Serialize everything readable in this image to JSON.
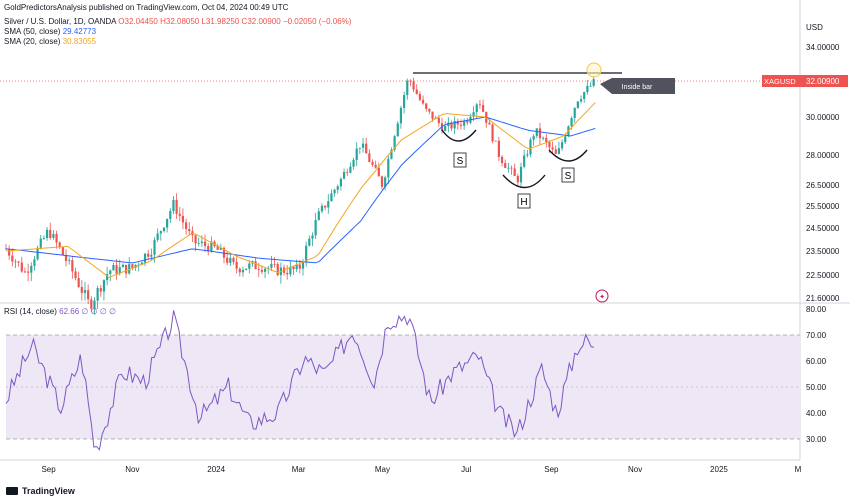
{
  "publisher": "GoldPredictorsAnalysis published on TradingView.com, Oct 04, 2024 00:49 UTC",
  "symbol_line": {
    "name": "Silver / U.S. Dollar, 1D, OANDA",
    "open": "O32.04450",
    "high": "H32.08050",
    "low": "L31.98250",
    "close": "C32.00900",
    "change": "−0.02050 (−0.06%)"
  },
  "sma50": {
    "label": "SMA (50, close)",
    "value": "29.42773",
    "color": "#2962ff"
  },
  "sma20": {
    "label": "SMA (20, close)",
    "value": "30.83055",
    "color": "#f5a623"
  },
  "rsi_label": {
    "label": "RSI (14, close)",
    "value": "62.66",
    "zeros": "∅ ∅ ∅ ∅"
  },
  "currency": "USD",
  "price_tag": {
    "symbol": "XAGUSD",
    "value": "32.00900"
  },
  "annotations": {
    "inside_bar": "Inside bar",
    "left_shoulder": "S",
    "head": "H",
    "right_shoulder": "S"
  },
  "footer": "TradingView",
  "colors": {
    "up": "#26a69a",
    "down": "#ef5350",
    "rsi": "#7e57c2",
    "rsi_band": "#ede7f6",
    "neckline": "#131722"
  },
  "chart_data": [
    {
      "type": "candlestick",
      "title": "Silver / U.S. Dollar, 1D, OANDA",
      "x_axis_ticks": [
        "Sep",
        "Nov",
        "2024",
        "Mar",
        "May",
        "Jul",
        "Sep",
        "Nov",
        "2025",
        "M"
      ],
      "y_axis_ticks": [
        34.0,
        32.0,
        30.0,
        28.0,
        26.5,
        25.5,
        24.5,
        23.5,
        22.5,
        21.6
      ],
      "y_axis_tick_labels": [
        "34.00000",
        "32.00000",
        "30.00000",
        "28.00000",
        "26.50000",
        "25.50000",
        "24.50000",
        "23.50000",
        "22.50000",
        "21.60000"
      ],
      "ylim": [
        21.1,
        35.2
      ],
      "close_series_approx": [
        [
          "2023-08-01",
          23.6
        ],
        [
          "2023-08-15",
          22.6
        ],
        [
          "2023-09-01",
          24.4
        ],
        [
          "2023-09-15",
          23.0
        ],
        [
          "2023-10-01",
          21.3
        ],
        [
          "2023-10-15",
          22.7
        ],
        [
          "2023-11-01",
          22.8
        ],
        [
          "2023-11-15",
          23.6
        ],
        [
          "2023-12-01",
          25.6
        ],
        [
          "2023-12-15",
          23.9
        ],
        [
          "2024-01-01",
          23.6
        ],
        [
          "2024-01-15",
          22.8
        ],
        [
          "2024-02-01",
          22.9
        ],
        [
          "2024-02-15",
          22.7
        ],
        [
          "2024-03-01",
          22.7
        ],
        [
          "2024-03-15",
          25.0
        ],
        [
          "2024-04-01",
          26.8
        ],
        [
          "2024-04-15",
          28.6
        ],
        [
          "2024-05-01",
          26.5
        ],
        [
          "2024-05-20",
          32.2
        ],
        [
          "2024-06-01",
          30.4
        ],
        [
          "2024-06-15",
          29.4
        ],
        [
          "2024-07-01",
          29.8
        ],
        [
          "2024-07-10",
          31.0
        ],
        [
          "2024-07-25",
          28.0
        ],
        [
          "2024-08-07",
          26.7
        ],
        [
          "2024-08-20",
          29.3
        ],
        [
          "2024-09-05",
          27.9
        ],
        [
          "2024-09-20",
          31.0
        ],
        [
          "2024-10-03",
          32.0
        ]
      ],
      "sma50_approx": [
        [
          "2023-08-01",
          23.6
        ],
        [
          "2023-09-15",
          23.3
        ],
        [
          "2023-11-01",
          23.0
        ],
        [
          "2023-12-15",
          23.6
        ],
        [
          "2024-02-01",
          23.2
        ],
        [
          "2024-03-15",
          23.0
        ],
        [
          "2024-04-15",
          24.8
        ],
        [
          "2024-05-15",
          27.5
        ],
        [
          "2024-06-15",
          29.6
        ],
        [
          "2024-07-15",
          30.0
        ],
        [
          "2024-08-15",
          29.3
        ],
        [
          "2024-09-15",
          29.0
        ],
        [
          "2024-10-03",
          29.4
        ]
      ],
      "sma20_approx": [
        [
          "2023-08-01",
          23.5
        ],
        [
          "2023-09-15",
          23.7
        ],
        [
          "2023-10-15",
          22.4
        ],
        [
          "2023-11-15",
          23.1
        ],
        [
          "2023-12-15",
          24.3
        ],
        [
          "2024-01-15",
          23.3
        ],
        [
          "2024-02-15",
          22.6
        ],
        [
          "2024-03-15",
          23.3
        ],
        [
          "2024-04-15",
          26.3
        ],
        [
          "2024-05-15",
          28.8
        ],
        [
          "2024-06-15",
          30.2
        ],
        [
          "2024-07-15",
          30.0
        ],
        [
          "2024-08-15",
          28.3
        ],
        [
          "2024-09-10",
          29.0
        ],
        [
          "2024-10-03",
          30.8
        ]
      ]
    },
    {
      "type": "line",
      "title": "RSI (14, close)",
      "y_axis_ticks": [
        80,
        70,
        60,
        50,
        40,
        30
      ],
      "ylim": [
        22,
        82
      ],
      "bands": [
        30,
        70
      ],
      "values_approx": [
        [
          "2023-08-01",
          45
        ],
        [
          "2023-08-20",
          66
        ],
        [
          "2023-09-10",
          42
        ],
        [
          "2023-09-25",
          62
        ],
        [
          "2023-10-05",
          25
        ],
        [
          "2023-10-25",
          56
        ],
        [
          "2023-11-10",
          52
        ],
        [
          "2023-12-01",
          76
        ],
        [
          "2023-12-20",
          38
        ],
        [
          "2024-01-10",
          50
        ],
        [
          "2024-01-25",
          36
        ],
        [
          "2024-02-15",
          40
        ],
        [
          "2024-03-05",
          61
        ],
        [
          "2024-03-20",
          55
        ],
        [
          "2024-04-10",
          72
        ],
        [
          "2024-04-25",
          52
        ],
        [
          "2024-05-05",
          76
        ],
        [
          "2024-05-20",
          78
        ],
        [
          "2024-06-05",
          44
        ],
        [
          "2024-06-20",
          55
        ],
        [
          "2024-07-10",
          62
        ],
        [
          "2024-07-25",
          40
        ],
        [
          "2024-08-07",
          32
        ],
        [
          "2024-08-25",
          57
        ],
        [
          "2024-09-05",
          40
        ],
        [
          "2024-09-20",
          66
        ],
        [
          "2024-09-28",
          68
        ],
        [
          "2024-10-03",
          62.66
        ]
      ]
    }
  ]
}
